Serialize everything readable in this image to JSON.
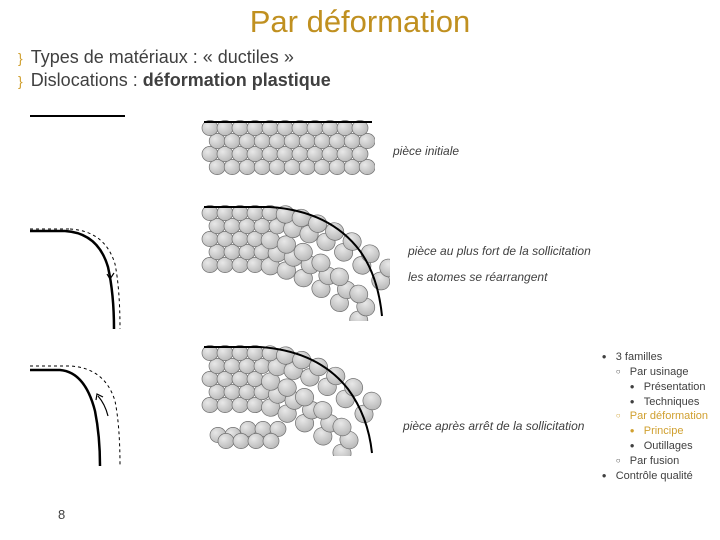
{
  "title": "Par déformation",
  "title_color": "#c09020",
  "bullets": [
    {
      "marker": "}",
      "text_before": "Types de matériaux : « ",
      "text_bold": "",
      "text_after": "ductiles »"
    },
    {
      "marker": "}",
      "text_before": "Dislocations : ",
      "text_bold": "déformation plastique",
      "text_after": ""
    }
  ],
  "bullet_1": "Types de matériaux : « ductiles »",
  "bullet_2_pre": "Dislocations : ",
  "bullet_2_bold": "déformation plastique",
  "stages": {
    "s1": {
      "label": "pièce initiale"
    },
    "s2": {
      "label1": "pièce au plus fort de la sollicitation",
      "label2": "les atomes se réarrangent"
    },
    "s3": {
      "label": "pièce après arrêt de la sollicitation"
    }
  },
  "atom_style": {
    "fill_light": "#e8e8e8",
    "fill_dark": "#b8b8b8",
    "stroke": "#707070",
    "radius": 8
  },
  "curve_style": {
    "stroke": "#000000",
    "stroke_width": 1.5,
    "dash": "3,3"
  },
  "page_number": "8",
  "nav": {
    "root": "3 familles",
    "items": [
      {
        "label": "Par usinage",
        "sub": [
          "Présentation",
          "Techniques"
        ]
      },
      {
        "label": "Par déformation",
        "active": true,
        "sub": [
          "Principe",
          "Outillages"
        ]
      },
      {
        "label": "Par fusion",
        "sub": []
      }
    ],
    "last": "Contrôle qualité"
  }
}
